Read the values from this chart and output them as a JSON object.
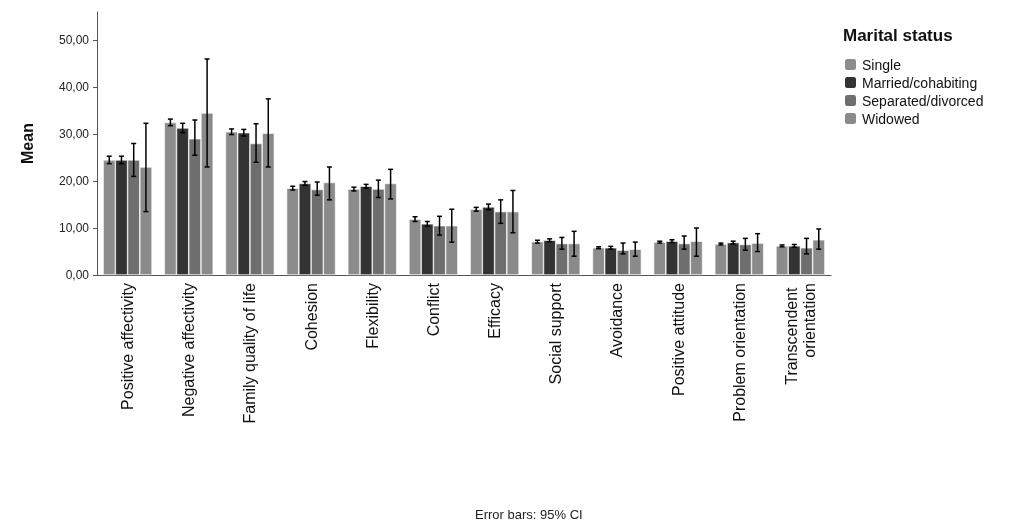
{
  "chart_data": {
    "type": "bar",
    "ylabel": "Mean",
    "legend_title": "Marital status",
    "legend": "top right",
    "grid": false,
    "annotations": [
      "Error bars: 95% CI"
    ],
    "categories": [
      "Positive affectivity",
      "Negative affectivity",
      "Family quality of life",
      "Cohesion",
      "Flexibility",
      "Conflict",
      "Efficacy",
      "Social support",
      "Avoidance",
      "Positive attitude",
      "Problem orientation",
      "Transcendent orientation"
    ],
    "ylim": [
      0,
      56
    ],
    "yticks": [
      {
        "value": 0,
        "label": "0,00"
      },
      {
        "value": 10,
        "label": "10,00"
      },
      {
        "value": 20,
        "label": "20,00"
      },
      {
        "value": 30,
        "label": "30,00"
      },
      {
        "value": 40,
        "label": "40,00"
      },
      {
        "value": 50,
        "label": "50,00"
      }
    ],
    "series": [
      {
        "name": "Single",
        "color": "#8c8c8c",
        "values": [
          24.5,
          32.5,
          30.5,
          18.5,
          18.3,
          11.9,
          14,
          7.1,
          5.8,
          7,
          6.6,
          6.2
        ],
        "errors": [
          0.8,
          0.7,
          0.6,
          0.4,
          0.4,
          0.5,
          0.4,
          0.3,
          0.2,
          0.2,
          0.2,
          0.2
        ]
      },
      {
        "name": "Married/cohabiting",
        "color": "#333333",
        "values": [
          24.5,
          31.3,
          30.3,
          19.5,
          18.9,
          10.9,
          14.5,
          7.4,
          5.8,
          7.2,
          6.9,
          6.2
        ],
        "errors": [
          0.8,
          1,
          0.7,
          0.4,
          0.4,
          0.5,
          0.6,
          0.3,
          0.3,
          0.3,
          0.3,
          0.3
        ]
      },
      {
        "name": "Separated/divorced",
        "color": "#6e6e6e",
        "values": [
          24.5,
          29,
          28,
          18.2,
          18.3,
          10.5,
          13.5,
          6.7,
          5.3,
          6.7,
          6.5,
          5.8
        ],
        "errors": [
          [
            21,
            28
          ],
          [
            25.5,
            33
          ],
          [
            24,
            32.2
          ],
          [
            17,
            19.8
          ],
          [
            16.5,
            20.2
          ],
          [
            8.5,
            12.5
          ],
          [
            11,
            16
          ],
          [
            5.5,
            8
          ],
          [
            4.5,
            6.8
          ],
          [
            5.5,
            8.3
          ],
          [
            5.3,
            7.8
          ],
          [
            4.5,
            7.8
          ]
        ]
      },
      {
        "name": "Widowed",
        "color": "#8a8a8a",
        "values": [
          23,
          34.5,
          30.2,
          19.7,
          19.5,
          10.5,
          13.5,
          6.7,
          5.5,
          7.2,
          6.8,
          7.5
        ],
        "errors": [
          [
            13.5,
            32.3
          ],
          [
            23,
            46
          ],
          [
            23,
            37.5
          ],
          [
            16,
            23
          ],
          [
            16.2,
            22.5
          ],
          [
            7,
            14
          ],
          [
            9,
            18
          ],
          [
            4,
            9.3
          ],
          [
            4,
            7
          ],
          [
            4,
            10
          ],
          [
            5,
            8.8
          ],
          [
            5.5,
            9.8
          ]
        ]
      }
    ]
  }
}
